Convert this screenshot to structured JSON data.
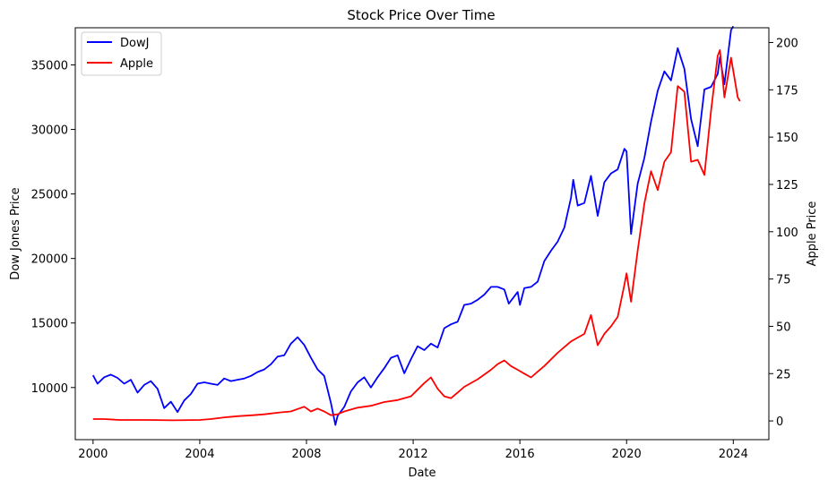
{
  "chart_data": {
    "type": "line",
    "title": "Stock Price Over Time",
    "xlabel": "Date",
    "ylabel_left": "Dow Jones Price",
    "ylabel_right": "Apple Price",
    "x_ticks": [
      "2000",
      "2004",
      "2008",
      "2012",
      "2016",
      "2020",
      "2024"
    ],
    "x_range": [
      "1999-05-01",
      "2025-05-01"
    ],
    "y_left_ticks": [
      10000,
      15000,
      20000,
      25000,
      30000,
      35000
    ],
    "y_left_range": [
      5960,
      37880
    ],
    "y_right_ticks": [
      0,
      25,
      50,
      75,
      100,
      125,
      150,
      175,
      200
    ],
    "y_right_range": [
      -9.9,
      207.8
    ],
    "grid": false,
    "legend_position": "top-left",
    "series": [
      {
        "name": "DowJ",
        "axis": "left",
        "color": "#0000ff",
        "x": [
          "2000-01",
          "2000-03",
          "2000-06",
          "2000-09",
          "2000-12",
          "2001-03",
          "2001-06",
          "2001-09",
          "2001-12",
          "2002-03",
          "2002-06",
          "2002-09",
          "2002-12",
          "2003-03",
          "2003-06",
          "2003-09",
          "2003-12",
          "2004-03",
          "2004-06",
          "2004-09",
          "2004-12",
          "2005-03",
          "2005-06",
          "2005-09",
          "2005-12",
          "2006-03",
          "2006-06",
          "2006-09",
          "2006-12",
          "2007-03",
          "2007-06",
          "2007-09",
          "2007-12",
          "2008-03",
          "2008-06",
          "2008-09",
          "2008-12",
          "2009-02",
          "2009-03",
          "2009-06",
          "2009-09",
          "2009-12",
          "2010-03",
          "2010-06",
          "2010-09",
          "2010-12",
          "2011-03",
          "2011-06",
          "2011-09",
          "2011-12",
          "2012-03",
          "2012-06",
          "2012-09",
          "2012-12",
          "2013-03",
          "2013-06",
          "2013-09",
          "2013-12",
          "2014-03",
          "2014-06",
          "2014-09",
          "2014-12",
          "2015-03",
          "2015-06",
          "2015-08",
          "2015-12",
          "2016-01",
          "2016-03",
          "2016-06",
          "2016-09",
          "2016-12",
          "2017-03",
          "2017-06",
          "2017-09",
          "2017-12",
          "2018-01",
          "2018-03",
          "2018-06",
          "2018-09",
          "2018-12",
          "2019-03",
          "2019-06",
          "2019-09",
          "2019-12",
          "2020-01",
          "2020-03",
          "2020-06",
          "2020-09",
          "2020-12",
          "2021-03",
          "2021-06",
          "2021-09",
          "2021-12",
          "2022-03",
          "2022-06",
          "2022-09",
          "2022-12",
          "2023-03",
          "2023-06",
          "2023-07",
          "2023-09",
          "2023-12",
          "2024-01"
        ],
        "values": [
          10950,
          10300,
          10800,
          11000,
          10750,
          10300,
          10600,
          9600,
          10200,
          10500,
          9900,
          8400,
          8900,
          8100,
          9000,
          9500,
          10300,
          10400,
          10300,
          10200,
          10700,
          10500,
          10600,
          10700,
          10900,
          11200,
          11400,
          11800,
          12400,
          12500,
          13400,
          13900,
          13300,
          12300,
          11400,
          10900,
          8800,
          7100,
          7800,
          8500,
          9700,
          10400,
          10800,
          10000,
          10800,
          11500,
          12300,
          12500,
          11100,
          12200,
          13200,
          12900,
          13400,
          13100,
          14600,
          14900,
          15100,
          16400,
          16500,
          16800,
          17200,
          17800,
          17800,
          17600,
          16500,
          17400,
          16400,
          17700,
          17800,
          18200,
          19800,
          20600,
          21300,
          22400,
          24700,
          26100,
          24100,
          24300,
          26400,
          23300,
          25900,
          26600,
          26900,
          28500,
          28300,
          21900,
          25800,
          27800,
          30600,
          33000,
          34500,
          33800,
          36300,
          34700,
          30800,
          28700,
          33100,
          33300,
          34300,
          35600,
          33500,
          37700,
          38000
        ]
      },
      {
        "name": "Apple",
        "axis": "right",
        "color": "#ff0000",
        "x": [
          "2000-01",
          "2000-06",
          "2001-01",
          "2002-01",
          "2003-01",
          "2004-01",
          "2004-06",
          "2005-01",
          "2005-06",
          "2006-01",
          "2006-06",
          "2007-01",
          "2007-06",
          "2007-12",
          "2008-03",
          "2008-06",
          "2008-09",
          "2008-12",
          "2009-03",
          "2009-06",
          "2009-09",
          "2009-12",
          "2010-06",
          "2010-12",
          "2011-06",
          "2011-12",
          "2012-06",
          "2012-09",
          "2012-12",
          "2013-03",
          "2013-06",
          "2013-09",
          "2013-12",
          "2014-06",
          "2014-12",
          "2015-03",
          "2015-06",
          "2015-09",
          "2015-12",
          "2016-03",
          "2016-06",
          "2016-09",
          "2016-12",
          "2017-06",
          "2017-12",
          "2018-06",
          "2018-09",
          "2018-12",
          "2019-03",
          "2019-06",
          "2019-09",
          "2019-12",
          "2020-01",
          "2020-03",
          "2020-06",
          "2020-09",
          "2020-12",
          "2021-03",
          "2021-06",
          "2021-09",
          "2021-12",
          "2022-03",
          "2022-06",
          "2022-09",
          "2022-12",
          "2023-03",
          "2023-06",
          "2023-07",
          "2023-09",
          "2023-12",
          "2024-01",
          "2024-03",
          "2024-04"
        ],
        "values": [
          1.0,
          1.0,
          0.5,
          0.5,
          0.3,
          0.5,
          1.0,
          2.0,
          2.5,
          3.0,
          3.5,
          4.5,
          5.0,
          7.5,
          5.0,
          6.5,
          5.0,
          3.0,
          3.5,
          5.0,
          6.0,
          7.0,
          8.0,
          10.0,
          11.0,
          13.0,
          20.0,
          23.0,
          17.0,
          13.0,
          12.0,
          15.0,
          18.0,
          22.0,
          27.0,
          30.0,
          32.0,
          29.0,
          27.0,
          25.0,
          23.0,
          26.0,
          29.0,
          36.0,
          42.0,
          46.0,
          56.0,
          40.0,
          46.0,
          50.0,
          55.0,
          72.0,
          78.0,
          63.0,
          90.0,
          115.0,
          132.0,
          122.0,
          137.0,
          142.0,
          177.0,
          174.0,
          137.0,
          138.0,
          130.0,
          164.0,
          193.0,
          196.0,
          171.0,
          192.0,
          185.0,
          171.0,
          169.0
        ]
      }
    ]
  }
}
